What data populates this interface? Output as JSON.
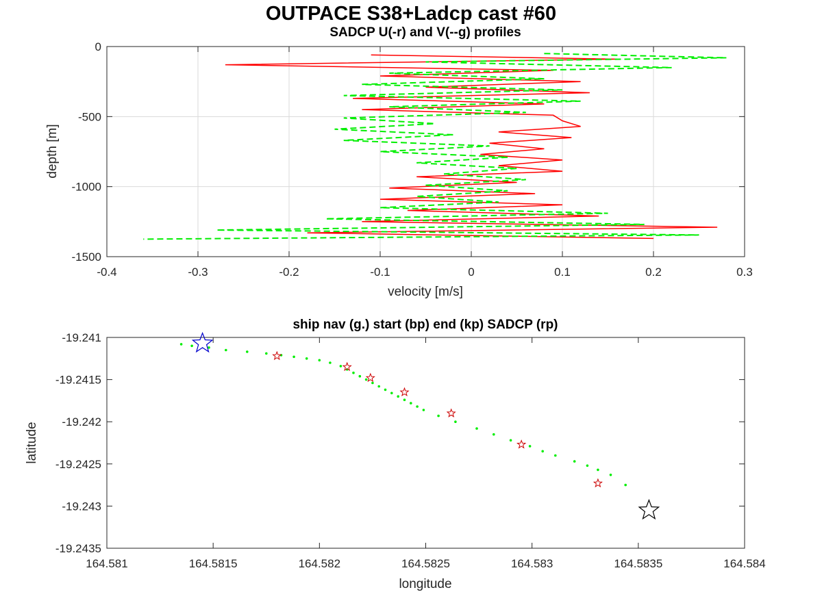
{
  "figure_title": "OUTPACE S38+Ladcp cast #60",
  "chart_data": [
    {
      "type": "line",
      "title": "SADCP U(-r) and V(--g) profiles",
      "xlabel": "velocity [m/s]",
      "ylabel": "depth [m]",
      "xlim": [
        -0.4,
        0.3
      ],
      "ylim": [
        -1500,
        0
      ],
      "xticks": [
        -0.4,
        -0.3,
        -0.2,
        -0.1,
        0,
        0.1,
        0.2,
        0.3
      ],
      "yticks": [
        0,
        -500,
        -1000,
        -1500
      ],
      "xtick_labels": [
        "-0.4",
        "-0.3",
        "-0.2",
        "-0.1",
        "0",
        "0.1",
        "0.2",
        "0.3"
      ],
      "ytick_labels": [
        "0",
        "-500",
        "-1000",
        "-1500"
      ],
      "grid": true,
      "series": [
        {
          "name": "U",
          "color": "#ff0000",
          "style": "solid",
          "depth": [
            -60,
            -90,
            -130,
            -170,
            -210,
            -250,
            -290,
            -330,
            -370,
            -410,
            -450,
            -490,
            -530,
            -570,
            -610,
            -650,
            -690,
            -730,
            -770,
            -810,
            -850,
            -890,
            -930,
            -970,
            -1010,
            -1050,
            -1090,
            -1130,
            -1170,
            -1210,
            -1250,
            -1290,
            -1330,
            -1370
          ],
          "values": [
            -0.11,
            0.16,
            -0.27,
            0.09,
            -0.1,
            0.12,
            -0.05,
            0.13,
            -0.13,
            0.08,
            -0.12,
            0.09,
            0.1,
            0.12,
            0.03,
            0.11,
            0.02,
            0.08,
            0.01,
            0.1,
            0.03,
            0.1,
            -0.06,
            0.05,
            -0.09,
            0.07,
            -0.1,
            0.1,
            -0.07,
            0.14,
            -0.12,
            0.27,
            -0.18,
            0.2
          ]
        },
        {
          "name": "V",
          "color": "#00ee00",
          "style": "dashed",
          "depth": [
            -50,
            -80,
            -110,
            -150,
            -190,
            -230,
            -270,
            -310,
            -350,
            -390,
            -430,
            -470,
            -510,
            -550,
            -590,
            -630,
            -670,
            -710,
            -750,
            -790,
            -830,
            -870,
            -910,
            -950,
            -990,
            -1030,
            -1070,
            -1110,
            -1150,
            -1190,
            -1230,
            -1270,
            -1310,
            -1345,
            -1375
          ],
          "values": [
            0.08,
            0.28,
            -0.05,
            0.22,
            -0.09,
            0.08,
            -0.12,
            0.1,
            -0.14,
            0.12,
            -0.09,
            0.06,
            -0.14,
            -0.04,
            -0.15,
            -0.02,
            -0.14,
            0.02,
            -0.1,
            0.04,
            -0.06,
            0.05,
            -0.03,
            0.06,
            -0.05,
            0.04,
            -0.06,
            0.03,
            -0.1,
            0.15,
            -0.16,
            0.19,
            -0.28,
            0.25,
            -0.36
          ]
        }
      ]
    },
    {
      "type": "scatter",
      "title": "ship nav (g.) start (bp) end (kp) SADCP (rp)",
      "xlabel": "longitude",
      "ylabel": "latitude",
      "xlim": [
        164.581,
        164.584
      ],
      "ylim": [
        -19.2435,
        -19.241
      ],
      "xticks": [
        164.581,
        164.5815,
        164.582,
        164.5825,
        164.583,
        164.5835,
        164.584
      ],
      "xtick_labels": [
        "164.581",
        "164.5815",
        "164.582",
        "164.5825",
        "164.583",
        "164.5835",
        "164.584"
      ],
      "yticks": [
        -19.241,
        -19.2415,
        -19.242,
        -19.2425,
        -19.243,
        -19.2435
      ],
      "ytick_labels": [
        "-19.241",
        "-19.2415",
        "-19.242",
        "-19.2425",
        "-19.243",
        "-19.2435"
      ],
      "grid": false,
      "nav_track": {
        "color": "#00ee00",
        "lon": [
          164.58135,
          164.5814,
          164.58148,
          164.58156,
          164.58166,
          164.58175,
          164.58182,
          164.58188,
          164.58194,
          164.582,
          164.58205,
          164.5821,
          164.58213,
          164.58216,
          164.58219,
          164.58222,
          164.58225,
          164.58228,
          164.58231,
          164.58234,
          164.58237,
          164.5824,
          164.58243,
          164.58246,
          164.58249,
          164.58256,
          164.58264,
          164.58274,
          164.58282,
          164.5829,
          164.58299,
          164.58305,
          164.58311,
          164.5832,
          164.58326,
          164.58331,
          164.58337,
          164.58344
        ],
        "lat": [
          -19.24108,
          -19.2411,
          -19.24112,
          -19.24115,
          -19.24117,
          -19.24119,
          -19.24121,
          -19.24123,
          -19.24125,
          -19.24127,
          -19.2413,
          -19.24134,
          -19.24138,
          -19.24142,
          -19.24146,
          -19.2415,
          -19.24154,
          -19.24158,
          -19.24162,
          -19.24166,
          -19.2417,
          -19.24174,
          -19.24178,
          -19.24182,
          -19.24186,
          -19.24193,
          -19.242,
          -19.24208,
          -19.24215,
          -19.24222,
          -19.24229,
          -19.24235,
          -19.2424,
          -19.24247,
          -19.24252,
          -19.24257,
          -19.24263,
          -19.24275
        ]
      },
      "start": {
        "lon": 164.58145,
        "lat": -19.24107,
        "color": "#0000cc"
      },
      "end": {
        "lon": 164.58355,
        "lat": -19.24305,
        "color": "#000000"
      },
      "sadcp": {
        "color": "#cc0000",
        "lon": [
          164.5818,
          164.58213,
          164.58224,
          164.5824,
          164.58262,
          164.58295,
          164.58331
        ],
        "lat": [
          -19.24122,
          -19.24135,
          -19.24148,
          -19.24165,
          -19.2419,
          -19.24227,
          -19.24273
        ]
      }
    }
  ]
}
